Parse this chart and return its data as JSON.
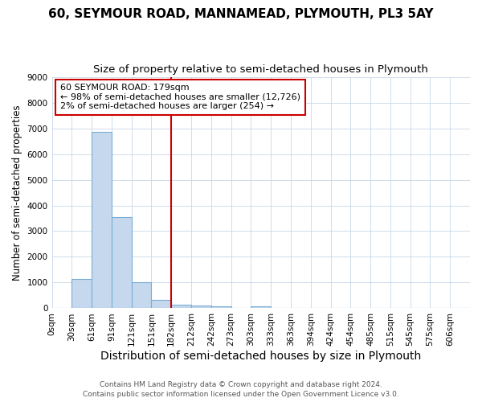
{
  "title": "60, SEYMOUR ROAD, MANNAMEAD, PLYMOUTH, PL3 5AY",
  "subtitle": "Size of property relative to semi-detached houses in Plymouth",
  "xlabel": "Distribution of semi-detached houses by size in Plymouth",
  "ylabel": "Number of semi-detached properties",
  "bin_labels": [
    "0sqm",
    "30sqm",
    "61sqm",
    "91sqm",
    "121sqm",
    "151sqm",
    "182sqm",
    "212sqm",
    "242sqm",
    "273sqm",
    "303sqm",
    "333sqm",
    "363sqm",
    "394sqm",
    "424sqm",
    "454sqm",
    "485sqm",
    "515sqm",
    "545sqm",
    "575sqm",
    "606sqm"
  ],
  "bar_heights": [
    0,
    1150,
    6850,
    3550,
    1000,
    330,
    150,
    110,
    90,
    0,
    90,
    0,
    0,
    0,
    0,
    0,
    0,
    0,
    0,
    0,
    0
  ],
  "bar_color": "#c5d8ee",
  "bar_edge_color": "#7aadd4",
  "vline_color": "#cc0000",
  "ylim": [
    0,
    9000
  ],
  "yticks": [
    0,
    1000,
    2000,
    3000,
    4000,
    5000,
    6000,
    7000,
    8000,
    9000
  ],
  "annotation_title": "60 SEYMOUR ROAD: 179sqm",
  "annotation_line1": "← 98% of semi-detached houses are smaller (12,726)",
  "annotation_line2": "2% of semi-detached houses are larger (254) →",
  "annotation_box_color": "#cc0000",
  "annotation_box_fill": "#ffffff",
  "footer_line1": "Contains HM Land Registry data © Crown copyright and database right 2024.",
  "footer_line2": "Contains public sector information licensed under the Open Government Licence v3.0.",
  "bg_color": "#ffffff",
  "plot_bg_color": "#ffffff",
  "title_fontsize": 11,
  "subtitle_fontsize": 9.5,
  "xlabel_fontsize": 10,
  "ylabel_fontsize": 8.5,
  "tick_fontsize": 7.5,
  "footer_fontsize": 6.5,
  "ann_fontsize": 8
}
